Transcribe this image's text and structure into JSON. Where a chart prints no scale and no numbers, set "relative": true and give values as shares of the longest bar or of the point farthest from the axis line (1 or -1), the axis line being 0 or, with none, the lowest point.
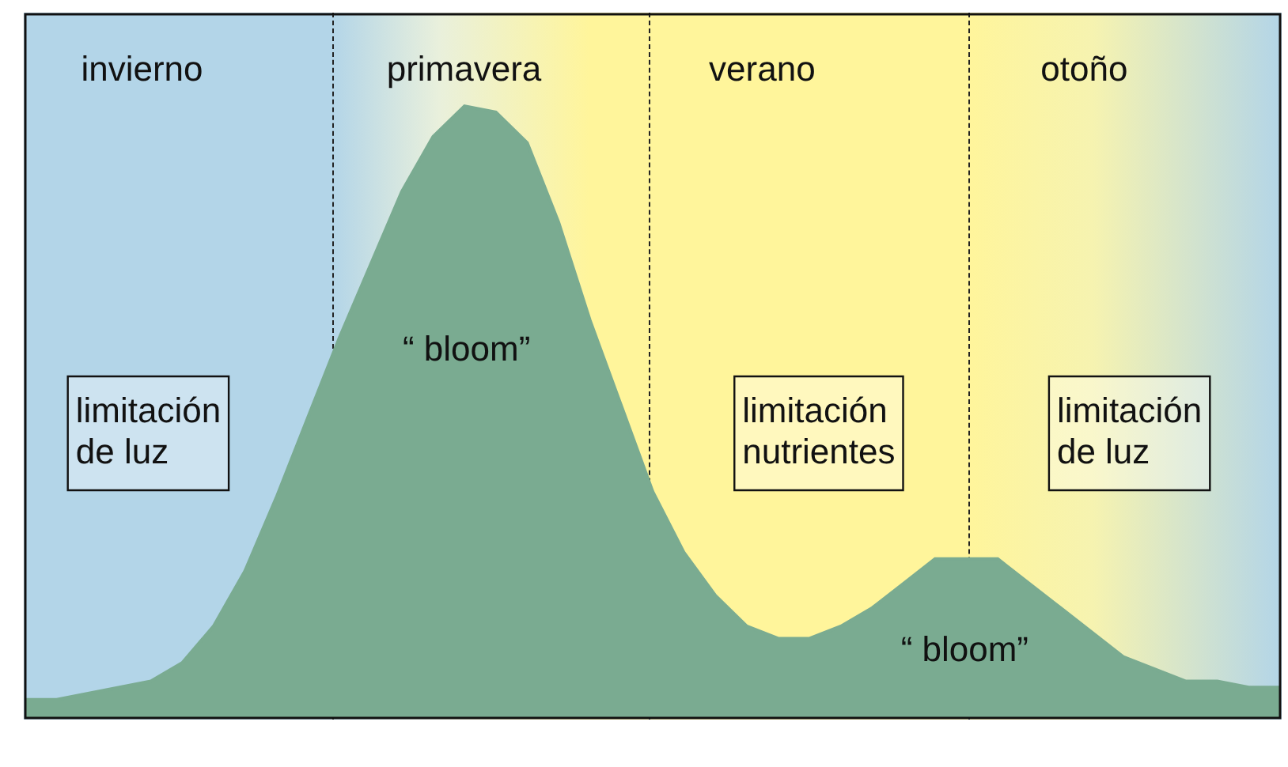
{
  "chart_data": {
    "type": "area",
    "relative": true,
    "categories": [
      null,
      null,
      null,
      null,
      null,
      null,
      null,
      null,
      null,
      null,
      null,
      null,
      null,
      null,
      null,
      null,
      null,
      null,
      null,
      null,
      null,
      null,
      null,
      null,
      null,
      null,
      null,
      null,
      null,
      null,
      null,
      null,
      null,
      null,
      null,
      null,
      null,
      null,
      null,
      null,
      null
    ],
    "series": [
      {
        "color": "#7aab91",
        "values": [
          0.03,
          0.03,
          0.04,
          0.05,
          0.06,
          0.09,
          0.15,
          0.24,
          0.36,
          0.49,
          0.62,
          0.74,
          0.86,
          0.95,
          1,
          0.99,
          0.94,
          0.81,
          0.65,
          0.51,
          0.37,
          0.27,
          0.2,
          0.15,
          0.13,
          0.13,
          0.15,
          0.18,
          0.22,
          0.26,
          0.26,
          0.26,
          0.22,
          0.18,
          0.14,
          0.1,
          0.08,
          0.06,
          0.06,
          0.05,
          0.05
        ]
      }
    ],
    "annotations": [
      "invierno",
      "primavera",
      "verano",
      "otoño",
      "limitación\nde luz",
      "“ bloom”",
      "limitación\nnutrientes",
      "“ bloom”",
      "limitación\nde luz"
    ]
  }
}
